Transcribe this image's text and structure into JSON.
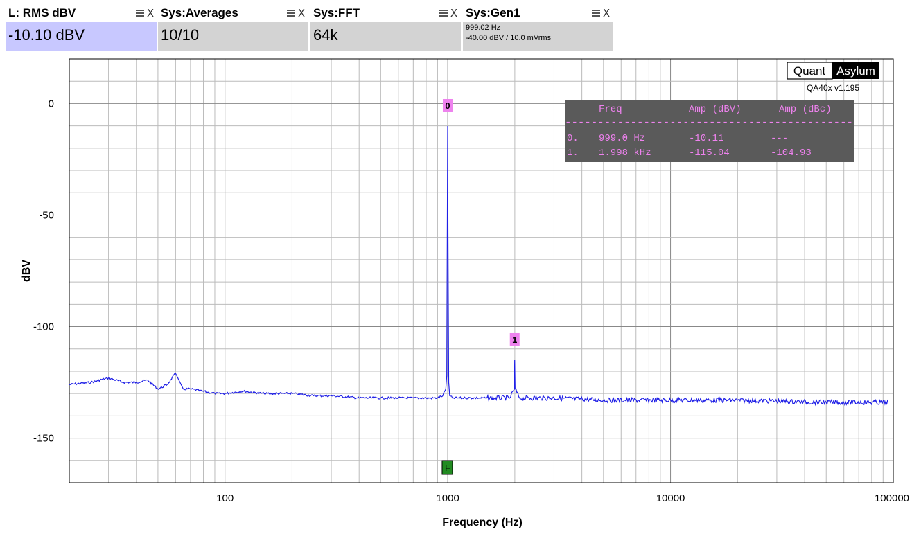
{
  "widgets": [
    {
      "title": "L: RMS dBV",
      "value": "-10.10 dBV"
    },
    {
      "title": "Sys:Averages",
      "value": "10/10"
    },
    {
      "title": "Sys:FFT",
      "value": "64k"
    },
    {
      "title": "Sys:Gen1",
      "line1": "999.02 Hz",
      "line2": "-40.00 dBV  / 10.0 mVrms"
    }
  ],
  "controls": {
    "menu_icon": "menu-icon",
    "close_glyph": "X"
  },
  "brand": {
    "quant": "Quant",
    "asylum": "Asylum",
    "version": "QA40x v1.195"
  },
  "markers_table": {
    "headers": [
      "Freq",
      "Amp (dBV)",
      "Amp (dBc)"
    ],
    "separator": "--------------------------------------------",
    "rows": [
      {
        "index": "0.",
        "freq": "999.0 Hz",
        "amp_dbv": "-10.11",
        "amp_dbc": "---"
      },
      {
        "index": "1.",
        "freq": "1.998 kHz",
        "amp_dbv": "-115.04",
        "amp_dbc": "-104.93"
      }
    ]
  },
  "chart_data": {
    "type": "line",
    "xlabel": "Frequency (Hz)",
    "ylabel": "dBV",
    "x_scale": "log",
    "xlim": [
      20,
      100000
    ],
    "ylim": [
      -170,
      20
    ],
    "x_ticks": [
      "100",
      "1000",
      "10000",
      "100000"
    ],
    "y_ticks": [
      "0",
      "-50",
      "-100",
      "-150"
    ],
    "grid": true,
    "series": [
      {
        "color": "#1f1fe6",
        "x": [
          20,
          25,
          30,
          35,
          40,
          45,
          50,
          55,
          60,
          65,
          70,
          80,
          90,
          100,
          120,
          150,
          200,
          250,
          300,
          400,
          500,
          600,
          700,
          800,
          900,
          950,
          980,
          990,
          995,
          999,
          1003,
          1010,
          1020,
          1050,
          1100,
          1200,
          1500,
          1900,
          1990,
          1998,
          2006,
          2100,
          3000,
          5000,
          10000,
          20000,
          50000,
          95000
        ],
        "y": [
          -126,
          -125,
          -123,
          -125,
          -125,
          -124,
          -128,
          -126,
          -121,
          -128,
          -128,
          -129,
          -130,
          -130,
          -129,
          -130,
          -130,
          -131,
          -131,
          -132,
          -132,
          -132,
          -132,
          -132,
          -132,
          -131,
          -128,
          -122,
          -60,
          -10.11,
          -60,
          -125,
          -131,
          -132,
          -132,
          -132,
          -132,
          -132,
          -128,
          -115.04,
          -128,
          -132,
          -132,
          -133,
          -133,
          -133,
          -134,
          -134
        ]
      }
    ],
    "markers": [
      {
        "label": "0",
        "x": 999.0,
        "y": -10.11,
        "color": "#ee82ee"
      },
      {
        "label": "1",
        "x": 1998,
        "y": -115.04,
        "color": "#ee82ee"
      }
    ],
    "generator_marker": {
      "label": "F",
      "x": 999.02,
      "color": "#228b22"
    }
  }
}
